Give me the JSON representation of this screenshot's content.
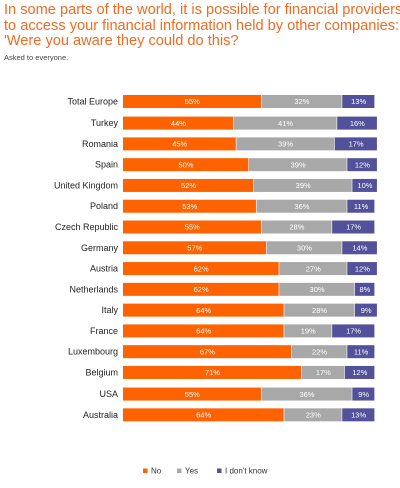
{
  "chart_data": {
    "type": "bar",
    "stacked": true,
    "orientation": "horizontal",
    "title_lines": [
      "In some parts of the world, it is possible for financial providers",
      "to access your financial information held by other companies:",
      "'Were you aware they could do this?"
    ],
    "subtitle": "Asked to everyone.",
    "categories": [
      "Total Europe",
      "Turkey",
      "Romania",
      "Spain",
      "United Kingdom",
      "Poland",
      "Czech Republic",
      "Germany",
      "Austria",
      "Netherlands",
      "Italy",
      "France",
      "Luxembourg",
      "Belgium",
      "USA",
      "Australia"
    ],
    "groups": [
      [
        0
      ],
      [
        1,
        2,
        3,
        4,
        5,
        6,
        7,
        8,
        9,
        10,
        11,
        12,
        13
      ],
      [
        14,
        15
      ]
    ],
    "series": [
      {
        "name": "No",
        "color": "#ff6200",
        "values": [
          55,
          44,
          45,
          50,
          52,
          53,
          55,
          57,
          62,
          62,
          64,
          64,
          67,
          71,
          55,
          64
        ]
      },
      {
        "name": "Yes",
        "color": "#a8a8a8",
        "values": [
          32,
          41,
          39,
          39,
          39,
          36,
          28,
          30,
          27,
          30,
          28,
          19,
          22,
          17,
          36,
          23
        ]
      },
      {
        "name": "I don't know",
        "color": "#525199",
        "values": [
          13,
          16,
          17,
          12,
          10,
          11,
          17,
          14,
          12,
          8,
          9,
          17,
          11,
          12,
          9,
          13
        ]
      }
    ],
    "value_suffix": "%",
    "xlim": [
      0,
      100
    ],
    "legend_position": "bottom-center"
  }
}
